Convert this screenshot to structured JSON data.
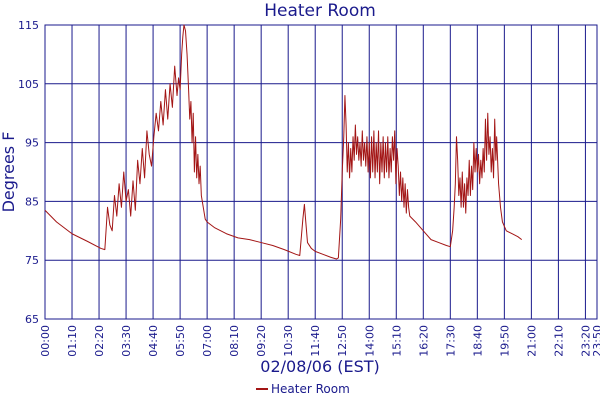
{
  "chart_data": {
    "type": "line",
    "title": "Heater Room",
    "xlabel": "02/08/06 (EST)",
    "ylabel": "Degrees F",
    "ylim": [
      65,
      115
    ],
    "yticks": [
      65,
      75,
      85,
      95,
      105,
      115
    ],
    "x_tick_labels": [
      "00:00",
      "01:10",
      "02:20",
      "03:30",
      "04:40",
      "05:50",
      "07:00",
      "08:10",
      "09:20",
      "10:30",
      "11:40",
      "12:50",
      "14:00",
      "15:10",
      "16:20",
      "17:30",
      "18:40",
      "19:50",
      "21:00",
      "22:10",
      "23:20",
      "23:50"
    ],
    "x_unit": "minutes since 00:00",
    "xlim": [
      0,
      1430
    ],
    "grid": true,
    "legend_position": "bottom-center",
    "colors": {
      "series": "#a31515",
      "grid": "#1a1a8c",
      "text": "#1a1a8c"
    },
    "series": [
      {
        "name": "Heater Room",
        "points": [
          [
            0,
            83.5
          ],
          [
            30,
            81.5
          ],
          [
            70,
            79.5
          ],
          [
            110,
            78.2
          ],
          [
            145,
            77
          ],
          [
            155,
            76.8
          ],
          [
            162,
            84
          ],
          [
            168,
            81
          ],
          [
            174,
            80
          ],
          [
            180,
            86
          ],
          [
            186,
            82.5
          ],
          [
            192,
            88
          ],
          [
            198,
            84
          ],
          [
            204,
            90
          ],
          [
            210,
            85
          ],
          [
            216,
            87
          ],
          [
            222,
            82.5
          ],
          [
            228,
            88.5
          ],
          [
            234,
            83.5
          ],
          [
            240,
            92
          ],
          [
            246,
            88
          ],
          [
            252,
            94
          ],
          [
            258,
            89
          ],
          [
            264,
            97
          ],
          [
            270,
            93
          ],
          [
            276,
            91
          ],
          [
            282,
            96
          ],
          [
            288,
            100
          ],
          [
            294,
            97
          ],
          [
            300,
            102
          ],
          [
            306,
            98
          ],
          [
            312,
            104
          ],
          [
            318,
            99
          ],
          [
            324,
            105
          ],
          [
            330,
            101
          ],
          [
            336,
            108
          ],
          [
            342,
            103
          ],
          [
            346,
            106
          ],
          [
            350,
            104
          ],
          [
            354,
            110
          ],
          [
            357,
            113
          ],
          [
            360,
            115
          ],
          [
            364,
            114
          ],
          [
            368,
            110
          ],
          [
            372,
            104
          ],
          [
            375,
            99
          ],
          [
            378,
            102
          ],
          [
            381,
            95
          ],
          [
            384,
            100
          ],
          [
            387,
            90
          ],
          [
            390,
            96
          ],
          [
            393,
            89
          ],
          [
            396,
            93
          ],
          [
            399,
            88
          ],
          [
            402,
            91
          ],
          [
            405,
            86
          ],
          [
            410,
            84
          ],
          [
            415,
            82
          ],
          [
            420,
            81.5
          ],
          [
            440,
            80.5
          ],
          [
            470,
            79.5
          ],
          [
            500,
            78.8
          ],
          [
            530,
            78.5
          ],
          [
            560,
            78
          ],
          [
            590,
            77.5
          ],
          [
            620,
            76.8
          ],
          [
            650,
            76
          ],
          [
            660,
            75.8
          ],
          [
            668,
            82
          ],
          [
            672,
            84.5
          ],
          [
            675,
            82
          ],
          [
            680,
            78
          ],
          [
            690,
            77
          ],
          [
            700,
            76.5
          ],
          [
            720,
            76
          ],
          [
            740,
            75.5
          ],
          [
            755,
            75.2
          ],
          [
            760,
            75.4
          ],
          [
            766,
            82
          ],
          [
            770,
            90
          ],
          [
            774,
            96
          ],
          [
            777,
            103
          ],
          [
            780,
            98
          ],
          [
            783,
            90
          ],
          [
            786,
            95
          ],
          [
            789,
            89
          ],
          [
            792,
            94
          ],
          [
            795,
            90
          ],
          [
            798,
            96
          ],
          [
            801,
            92
          ],
          [
            804,
            98
          ],
          [
            807,
            93
          ],
          [
            810,
            96
          ],
          [
            813,
            92
          ],
          [
            816,
            95
          ],
          [
            819,
            91
          ],
          [
            822,
            97
          ],
          [
            825,
            92
          ],
          [
            828,
            95
          ],
          [
            831,
            91
          ],
          [
            834,
            96
          ],
          [
            837,
            90
          ],
          [
            840,
            95
          ],
          [
            843,
            89
          ],
          [
            846,
            96
          ],
          [
            849,
            90
          ],
          [
            852,
            97
          ],
          [
            855,
            89
          ],
          [
            858,
            95
          ],
          [
            861,
            90
          ],
          [
            864,
            97
          ],
          [
            867,
            88
          ],
          [
            870,
            95
          ],
          [
            873,
            90
          ],
          [
            876,
            96
          ],
          [
            879,
            89
          ],
          [
            882,
            95
          ],
          [
            885,
            90
          ],
          [
            888,
            96
          ],
          [
            891,
            89
          ],
          [
            894,
            94
          ],
          [
            897,
            90
          ],
          [
            900,
            96
          ],
          [
            903,
            92
          ],
          [
            906,
            97
          ],
          [
            909,
            88
          ],
          [
            912,
            94
          ],
          [
            915,
            91
          ],
          [
            918,
            86
          ],
          [
            921,
            90
          ],
          [
            924,
            85
          ],
          [
            927,
            89
          ],
          [
            930,
            84
          ],
          [
            933,
            88
          ],
          [
            936,
            83
          ],
          [
            939,
            87
          ],
          [
            942,
            84
          ],
          [
            945,
            82.5
          ],
          [
            960,
            81.5
          ],
          [
            980,
            80
          ],
          [
            1000,
            78.5
          ],
          [
            1020,
            78
          ],
          [
            1040,
            77.5
          ],
          [
            1050,
            77.3
          ],
          [
            1056,
            80
          ],
          [
            1060,
            84
          ],
          [
            1063,
            88
          ],
          [
            1066,
            96
          ],
          [
            1069,
            92
          ],
          [
            1072,
            86
          ],
          [
            1075,
            89
          ],
          [
            1078,
            84
          ],
          [
            1081,
            90
          ],
          [
            1084,
            84
          ],
          [
            1087,
            88
          ],
          [
            1090,
            83
          ],
          [
            1093,
            89
          ],
          [
            1096,
            86
          ],
          [
            1099,
            92
          ],
          [
            1102,
            86
          ],
          [
            1105,
            91
          ],
          [
            1108,
            87
          ],
          [
            1111,
            95
          ],
          [
            1114,
            90
          ],
          [
            1117,
            94
          ],
          [
            1120,
            90
          ],
          [
            1123,
            93
          ],
          [
            1126,
            88
          ],
          [
            1129,
            92
          ],
          [
            1132,
            89
          ],
          [
            1135,
            94
          ],
          [
            1138,
            90
          ],
          [
            1141,
            99
          ],
          [
            1144,
            92
          ],
          [
            1147,
            100
          ],
          [
            1150,
            93
          ],
          [
            1153,
            96
          ],
          [
            1156,
            90
          ],
          [
            1159,
            94
          ],
          [
            1162,
            89
          ],
          [
            1165,
            99
          ],
          [
            1168,
            92
          ],
          [
            1170,
            96
          ],
          [
            1175,
            88
          ],
          [
            1180,
            84
          ],
          [
            1185,
            81.5
          ],
          [
            1195,
            80
          ],
          [
            1210,
            79.5
          ],
          [
            1225,
            79
          ],
          [
            1235,
            78.5
          ]
        ]
      }
    ]
  }
}
